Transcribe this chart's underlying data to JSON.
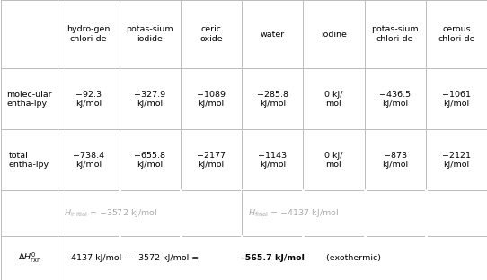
{
  "col_headers": [
    "hydro­gen\nchlori­de",
    "potas­sium\niodide",
    "ceric\noxide",
    "water",
    "iodine",
    "potas­sium\nchlori­de",
    "cerous\nchlori­de"
  ],
  "mol_enthalpy": [
    "−92.3\nkJ/mol",
    "−327.9\nkJ/mol",
    "−1089\nkJ/mol",
    "−285.8\nkJ/mol",
    "0 kJ/\nmol",
    "−436.5\nkJ/mol",
    "−1061\nkJ/mol"
  ],
  "total_enthalpy": [
    "−738.4\nkJ/mol",
    "−655.8\nkJ/mol",
    "−2177\nkJ/mol",
    "−1143\nkJ/mol",
    "0 kJ/\nmol",
    "−873\nkJ/mol",
    "−2121\nkJ/mol"
  ],
  "border_color": "#bbbbbb",
  "text_color": "#000000",
  "gray_color": "#aaaaaa",
  "bg_color": "#ffffff"
}
